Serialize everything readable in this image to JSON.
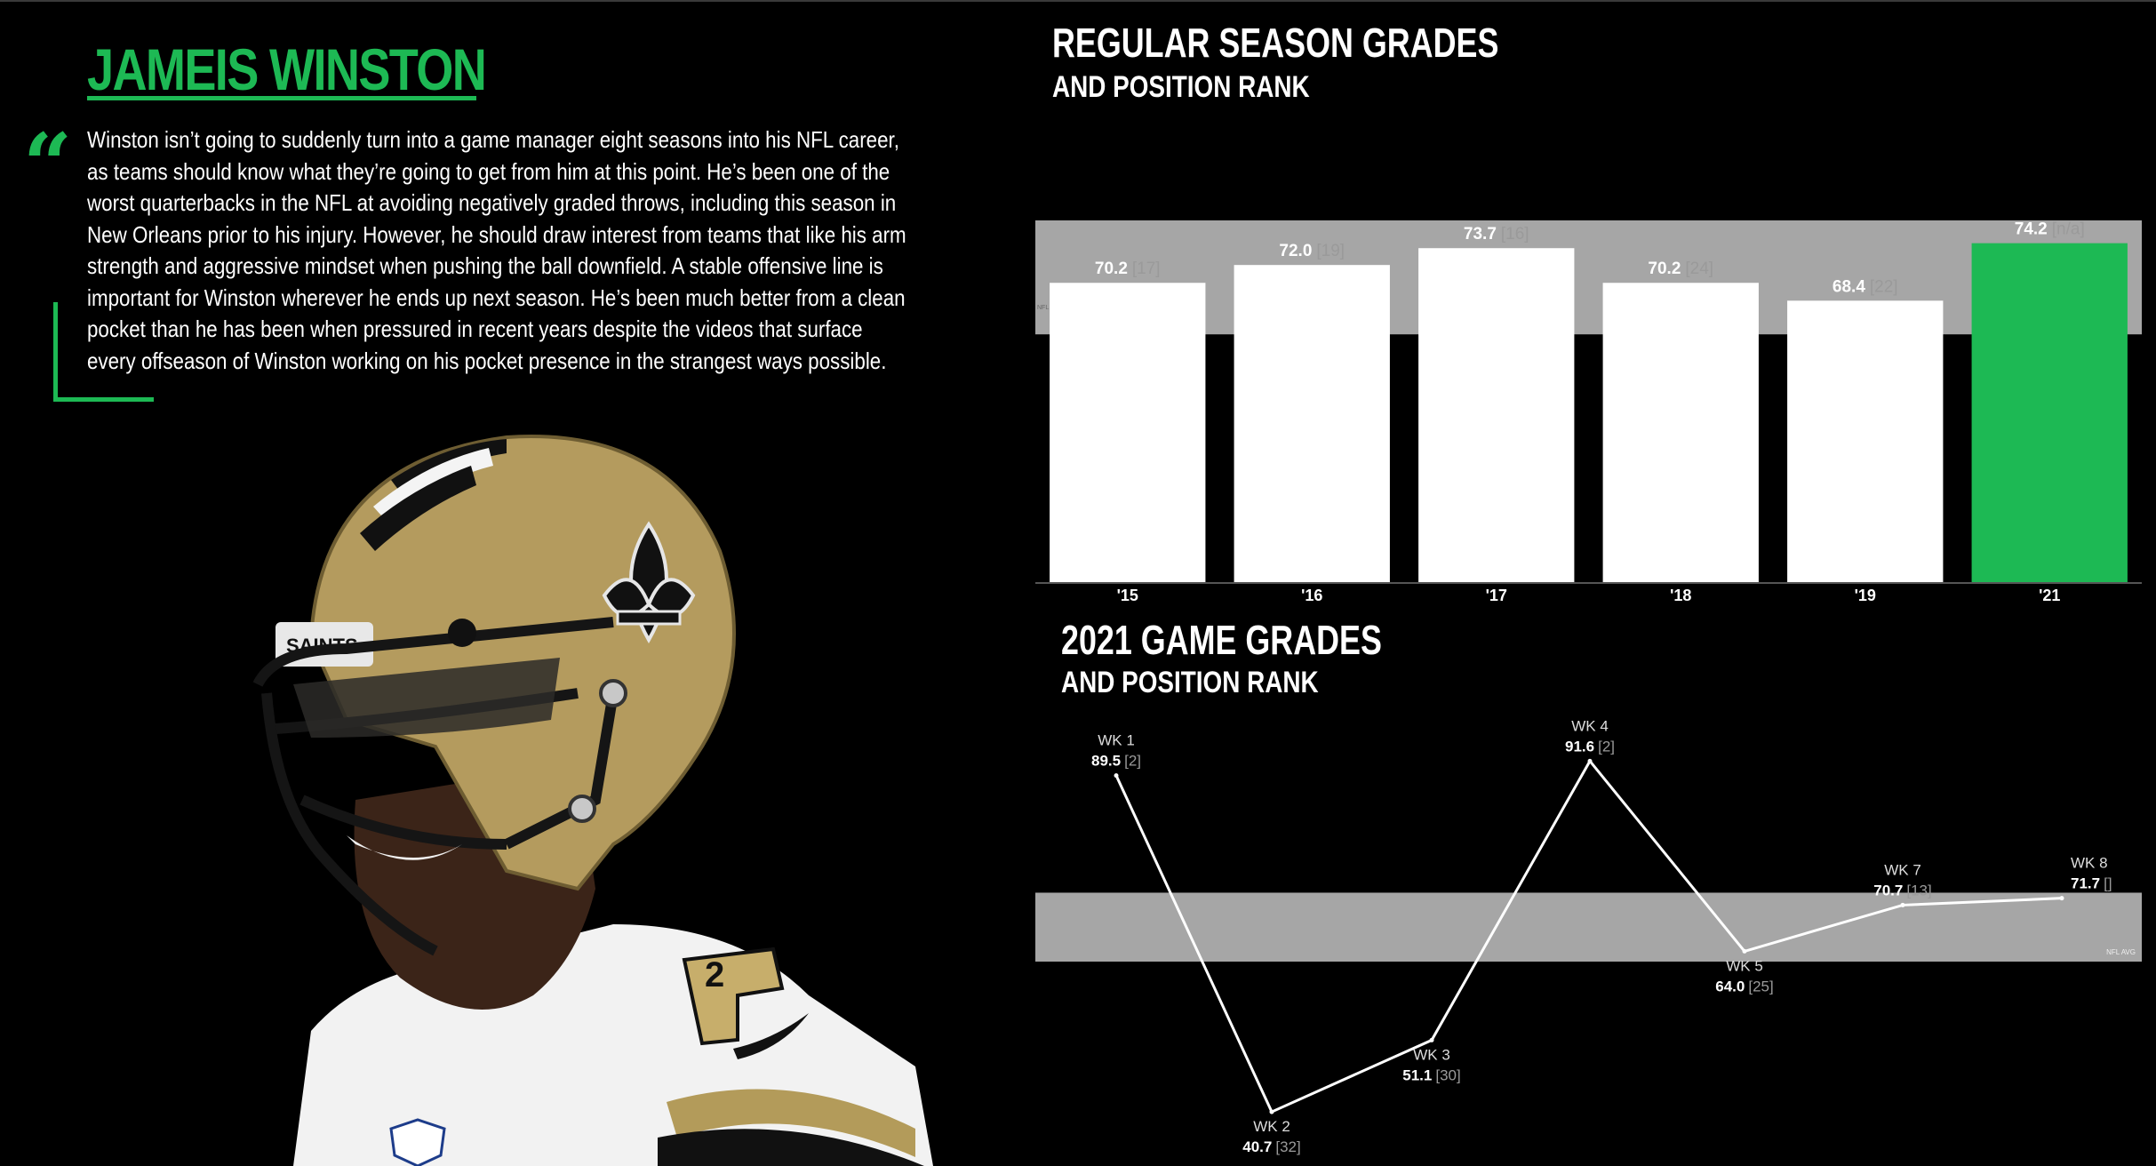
{
  "player": {
    "name": "JAMEIS WINSTON",
    "quote_mark": "“",
    "quote": "Winston isn’t going to suddenly turn into a game manager eight seasons into his NFL career, as teams should know what they’re going to get from him at this point. He’s been one of the worst quarterbacks in the NFL at avoiding negatively graded throws, including this season in New Orleans prior to his injury. However, he should draw interest from teams that like his arm strength and aggressive mindset when pushing the ball downfield. A stable offensive line is important for Winston wherever he ends up next season. He’s been much better from a clean pocket than he has been when pressured in recent years despite the videos that surface every offseason of Winston working on his pocket presence in the strangest ways possible.",
    "helmet_text": "SAINTS",
    "jersey_number": "2"
  },
  "colors": {
    "accent": "#1db954",
    "bar": "#ffffff",
    "band": "#a6a6a6",
    "background": "#000000",
    "rank": "#9a9a9a"
  },
  "chart_data": [
    {
      "type": "bar",
      "title": "REGULAR SEASON GRADES",
      "subtitle": "AND POSITION RANK",
      "categories": [
        "'15",
        "'16",
        "'17",
        "'18",
        "'19",
        "'21"
      ],
      "values": [
        70.2,
        72.0,
        73.7,
        70.2,
        68.4,
        74.2
      ],
      "value_labels": [
        "70.2",
        "72.0",
        "73.7",
        "70.2",
        "68.4",
        "74.2"
      ],
      "ranks": [
        "[17]",
        "[19]",
        "[16]",
        "[24]",
        "[22]",
        "[n/a]"
      ],
      "highlight_index": 5,
      "band_label": "NFL AVG",
      "band_range": [
        65.0,
        76.5
      ],
      "ylim": [
        40,
        76.5
      ],
      "grid": false
    },
    {
      "type": "line",
      "title": "2021 GAME GRADES",
      "subtitle": "AND POSITION RANK",
      "x": [
        "WK 1",
        "WK 2",
        "WK 3",
        "WK 4",
        "WK 5",
        "WK 7",
        "WK 8"
      ],
      "values": [
        89.5,
        40.7,
        51.1,
        91.6,
        64.0,
        70.7,
        71.7
      ],
      "value_labels": [
        "89.5",
        "40.7",
        "51.1",
        "91.6",
        "64.0",
        "70.7",
        "71.7"
      ],
      "ranks": [
        "[2]",
        "[32]",
        "[30]",
        "[2]",
        "[25]",
        "[13]",
        "[]"
      ],
      "band_label": "NFL AVG",
      "band_range": [
        62.5,
        72.5
      ],
      "ylim": [
        38,
        95
      ],
      "grid": false
    }
  ]
}
